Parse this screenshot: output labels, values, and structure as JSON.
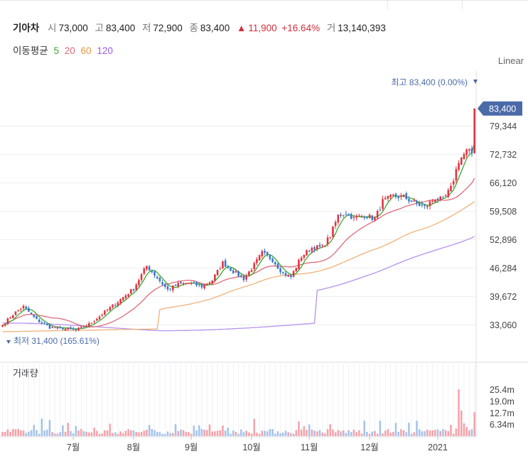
{
  "header": {
    "title": "기아차",
    "open_label": "시",
    "open": "73,000",
    "high_label": "고",
    "high": "83,400",
    "low_label": "저",
    "low": "72,900",
    "close_label": "종",
    "close": "83,400",
    "change": "11,900",
    "change_pct": "+16.64%",
    "volume_label": "거",
    "volume": "13,140,393"
  },
  "ma_legend": {
    "label": "이동평균",
    "periods": [
      {
        "text": "5",
        "color": "#3aa832"
      },
      {
        "text": "20",
        "color": "#e06a78"
      },
      {
        "text": "60",
        "color": "#e8963c"
      },
      {
        "text": "120",
        "color": "#9a5ce0"
      }
    ]
  },
  "scale_mode": "Linear",
  "volume_title": "거래량",
  "colors": {
    "up": "#e0343f",
    "down": "#3a78c9",
    "ma5": "#3aa832",
    "ma20": "#e06a78",
    "ma60": "#f0b27a",
    "ma120": "#b591ee",
    "volume_up": "#f4a3ab",
    "volume_down": "#a6c3ea",
    "axis_badge": "#4a6aa8"
  },
  "chart_data": {
    "type": "candlestick",
    "title": "기아차",
    "y_ticks": [
      33060,
      39672,
      46284,
      52896,
      59508,
      66120,
      72732,
      79344
    ],
    "y_tick_labels": [
      "33,060",
      "39,672",
      "46,284",
      "52,896",
      "59,508",
      "66,120",
      "72,732",
      "79,344"
    ],
    "last_price_label": "83,400",
    "high_annotation": "최고 83,400 (0.00%)",
    "low_annotation": "최저 31,400 (165.61%)",
    "x_labels": [
      "7월",
      "8월",
      "9월",
      "10월",
      "11월",
      "12월",
      "2021"
    ],
    "volume_ticks": [
      "25.4m",
      "19.0m",
      "12.7m",
      "6.34m"
    ],
    "close_anchors": [
      [
        0,
        33000
      ],
      [
        4,
        35500
      ],
      [
        8,
        37300
      ],
      [
        13,
        34200
      ],
      [
        18,
        32500
      ],
      [
        24,
        32200
      ],
      [
        28,
        31800
      ],
      [
        33,
        33200
      ],
      [
        39,
        36000
      ],
      [
        45,
        39000
      ],
      [
        50,
        41500
      ],
      [
        55,
        46800
      ],
      [
        59,
        44000
      ],
      [
        63,
        41200
      ],
      [
        67,
        42500
      ],
      [
        71,
        42800
      ],
      [
        76,
        42000
      ],
      [
        80,
        43500
      ],
      [
        84,
        47500
      ],
      [
        88,
        45500
      ],
      [
        92,
        43800
      ],
      [
        96,
        47000
      ],
      [
        99,
        49800
      ],
      [
        103,
        48200
      ],
      [
        107,
        45000
      ],
      [
        110,
        44200
      ],
      [
        114,
        49000
      ],
      [
        118,
        51000
      ],
      [
        122,
        51200
      ],
      [
        125,
        53800
      ],
      [
        128,
        58500
      ],
      [
        131,
        59200
      ],
      [
        134,
        57800
      ],
      [
        138,
        58600
      ],
      [
        142,
        57700
      ],
      [
        145,
        61800
      ],
      [
        149,
        63000
      ],
      [
        153,
        62800
      ],
      [
        157,
        61500
      ],
      [
        161,
        60400
      ],
      [
        165,
        62600
      ],
      [
        168,
        62100
      ],
      [
        171,
        64800
      ],
      [
        174,
        71300
      ],
      [
        177,
        73400
      ],
      [
        179,
        73000
      ],
      [
        180,
        83400
      ]
    ],
    "series": [
      {
        "name": "5"
      },
      {
        "name": "20"
      },
      {
        "name": "60"
      },
      {
        "name": "120"
      }
    ],
    "ylim": [
      31400,
      83400
    ]
  }
}
